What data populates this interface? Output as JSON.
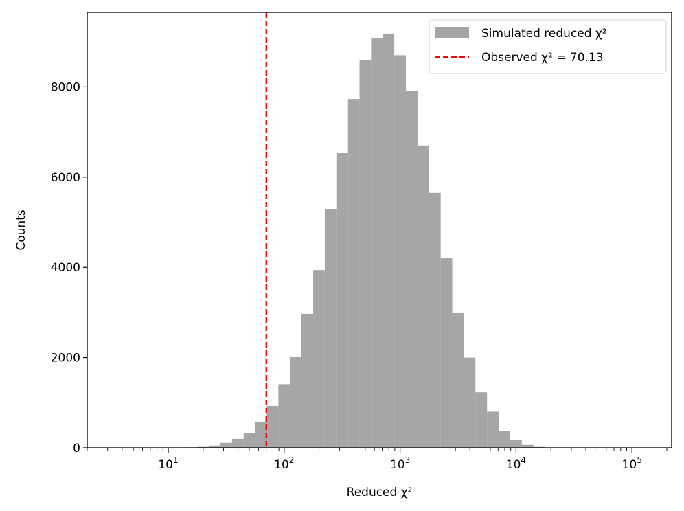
{
  "chart_data": {
    "type": "bar",
    "title": "",
    "xlabel": "Reduced χ²",
    "ylabel": "Counts",
    "xscale": "log",
    "xlim": [
      2,
      220000
    ],
    "ylim": [
      0,
      9650
    ],
    "yticks": [
      0,
      2000,
      4000,
      6000,
      8000
    ],
    "yticklabels": [
      "0",
      "2000",
      "4000",
      "6000",
      "8000"
    ],
    "xticks": [
      10,
      100,
      1000,
      10000,
      100000
    ],
    "xtick_base": "10",
    "xtick_exponents": [
      "1",
      "2",
      "3",
      "4",
      "5"
    ],
    "grid": false,
    "legend_position": "top-right",
    "series": [
      {
        "name": "Simulated reduced χ²",
        "kind": "histogram",
        "color": "#a6a6a6",
        "bin_edges": [
          2.82,
          3.55,
          4.47,
          5.62,
          7.08,
          8.91,
          11.2,
          14.1,
          17.8,
          22.4,
          28.2,
          35.5,
          44.7,
          56.2,
          70.8,
          89.1,
          112,
          141,
          178,
          224,
          282,
          355,
          447,
          562,
          708,
          891,
          1122,
          1413,
          1778,
          2239,
          2818,
          3548,
          4467,
          5623,
          7079,
          8913,
          11220,
          14125,
          17783,
          22387,
          28184,
          35481,
          44668,
          56234,
          70795,
          89125,
          112202,
          141254
        ],
        "counts": [
          0,
          0,
          0,
          0,
          0,
          2,
          5,
          10,
          20,
          50,
          110,
          200,
          320,
          580,
          930,
          1410,
          2010,
          2970,
          3940,
          5290,
          6530,
          7730,
          8600,
          9080,
          9180,
          8700,
          7900,
          6700,
          5650,
          4200,
          3000,
          2000,
          1230,
          800,
          380,
          180,
          65,
          20,
          5,
          1,
          0,
          0,
          0,
          0,
          0,
          0,
          0
        ]
      },
      {
        "name": "Observed χ² = 70.13",
        "kind": "vline",
        "color": "#ff0000",
        "x": 70.13
      }
    ]
  }
}
